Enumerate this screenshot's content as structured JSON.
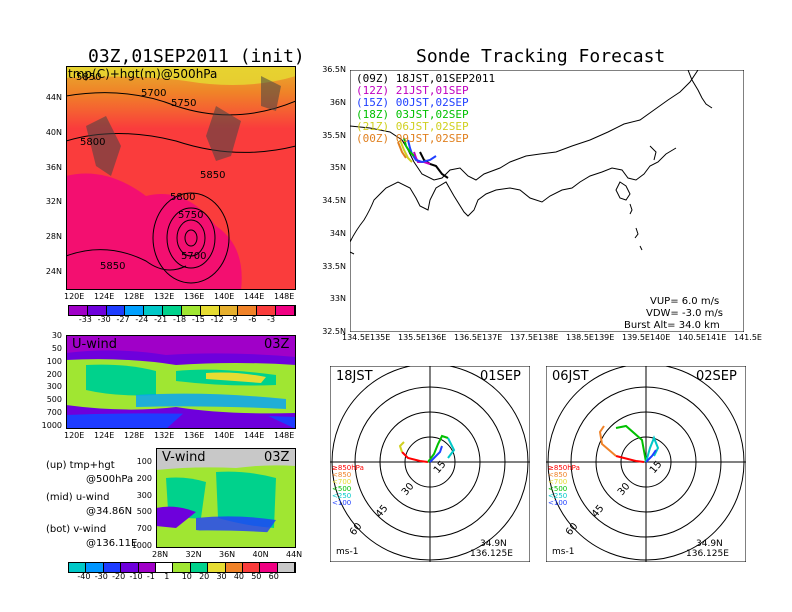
{
  "left": {
    "title": "03Z,01SEP2011 (init)",
    "top_map": {
      "label": "tmp(C)+hgt(m)@500hPa",
      "lat_ticks": [
        "44N",
        "40N",
        "36N",
        "32N",
        "28N",
        "24N"
      ],
      "lon_ticks": [
        "120E",
        "124E",
        "128E",
        "132E",
        "136E",
        "140E",
        "144E",
        "148E"
      ],
      "contour_labels": [
        "5850",
        "5700",
        "5750",
        "5800",
        "5850",
        "5800",
        "5750",
        "5700",
        "5850"
      ],
      "colorbar_ticks": [
        "-33",
        "-30",
        "-27",
        "-24",
        "-21",
        "-18",
        "-15",
        "-12",
        "-9",
        "-6",
        "-3"
      ],
      "colorbar_colors": [
        "#a000c8",
        "#6e00dc",
        "#1e3cff",
        "#00a0ff",
        "#00c8c8",
        "#00d28c",
        "#a0e632",
        "#e6dc32",
        "#e6af2d",
        "#f08228",
        "#fa3c3c",
        "#f00082"
      ]
    },
    "u_panel": {
      "label": "U-wind",
      "time": "03Z",
      "y_ticks": [
        "30",
        "50",
        "100",
        "200",
        "300",
        "500",
        "700",
        "1000"
      ],
      "x_ticks": [
        "120E",
        "124E",
        "128E",
        "132E",
        "136E",
        "140E",
        "144E",
        "148E"
      ]
    },
    "v_panel": {
      "label": "V-wind",
      "time": "03Z",
      "y_ticks": [
        "100",
        "200",
        "300",
        "500",
        "700",
        "1000"
      ],
      "x_ticks": [
        "28N",
        "32N",
        "36N",
        "40N",
        "44N"
      ]
    },
    "legend": {
      "up1": "(up) tmp+hgt",
      "up2": "@500hPa",
      "mid1": "(mid) u-wind",
      "mid2": "@34.86N",
      "bot1": "(bot) v-wind",
      "bot2": "@136.11E"
    },
    "wind_colorbar_ticks": [
      "-40",
      "-30",
      "-20",
      "-10",
      "-1",
      "1",
      "10",
      "20",
      "30",
      "40",
      "50",
      "60"
    ],
    "wind_colorbar_colors": [
      "#00c8c8",
      "#0096ff",
      "#1e3cff",
      "#6e00dc",
      "#a000c8",
      "#ffffff",
      "#a0e632",
      "#00d28c",
      "#e6dc32",
      "#f08228",
      "#fa3c3c",
      "#f00082",
      "#c8c8c8"
    ]
  },
  "right": {
    "title": "Sonde Tracking Forecast",
    "track_map": {
      "lat_ticks": [
        "36.5N",
        "36N",
        "35.5N",
        "35N",
        "34.5N",
        "34N",
        "33.5N",
        "33N",
        "32.5N"
      ],
      "lon_ticks": [
        "134.5E",
        "135E",
        "135.5E",
        "136E",
        "136.5E",
        "137E",
        "137.5E",
        "138E",
        "138.5E",
        "139E",
        "139.5E",
        "140E",
        "140.5E",
        "141E",
        "141.5E"
      ],
      "launches": [
        {
          "code": "(09Z)",
          "time": "18JST,01SEP2011",
          "color": "#000000"
        },
        {
          "code": "(12Z)",
          "time": "21JST,01SEP",
          "color": "#c000c0"
        },
        {
          "code": "(15Z)",
          "time": "00JST,02SEP",
          "color": "#2040ff"
        },
        {
          "code": "(18Z)",
          "time": "03JST,02SEP",
          "color": "#00c000"
        },
        {
          "code": "(21Z)",
          "time": "06JST,02SEP",
          "color": "#d0d020"
        },
        {
          "code": "(00Z)",
          "time": "09JST,02SEP",
          "color": "#e08020"
        }
      ],
      "vup": "VUP= 6.0 m/s",
      "vdw": "VDW= -3.0 m/s",
      "burst": "Burst Alt= 34.0 km"
    },
    "hodo1": {
      "time": "18JST",
      "date": "01SEP",
      "rings": [
        "15",
        "30",
        "45",
        "60"
      ],
      "lat": "34.9N",
      "lon": "136.125E",
      "unit": "ms-1",
      "levels": [
        {
          "text": "≥850hPa",
          "color": "#ff0000"
        },
        {
          "text": "<850",
          "color": "#f08228"
        },
        {
          "text": "<700",
          "color": "#e6dc32"
        },
        {
          "text": "<500",
          "color": "#00c000"
        },
        {
          "text": "<250",
          "color": "#00c8c8"
        },
        {
          "text": "<100",
          "color": "#2040ff"
        }
      ]
    },
    "hodo2": {
      "time": "06JST",
      "date": "02SEP",
      "rings": [
        "15",
        "30",
        "45",
        "60"
      ],
      "lat": "34.9N",
      "lon": "136.125E",
      "unit": "ms-1",
      "levels": [
        {
          "text": "≥850hPa",
          "color": "#ff0000"
        },
        {
          "text": "<850",
          "color": "#f08228"
        },
        {
          "text": "<700",
          "color": "#e6dc32"
        },
        {
          "text": "<500",
          "color": "#00c000"
        },
        {
          "text": "<250",
          "color": "#00c8c8"
        },
        {
          "text": "<100",
          "color": "#2040ff"
        }
      ]
    }
  }
}
